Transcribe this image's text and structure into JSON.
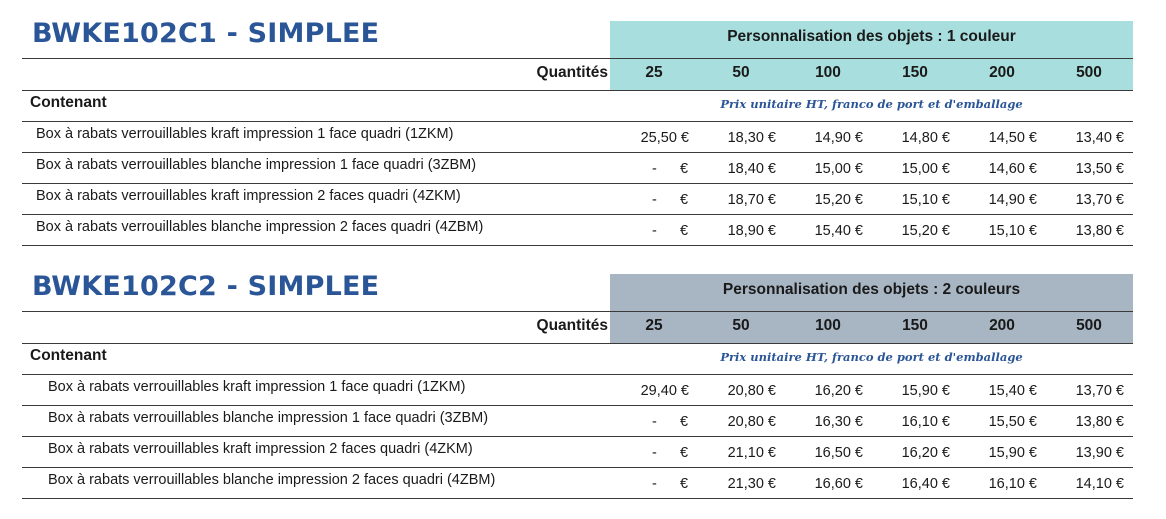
{
  "blocks": [
    {
      "title": "BWKE102C1 - SIMPLEE",
      "personalisation": "Personnalisation des objets : 1 couleur",
      "quantities_label": "Quantités",
      "quantities": [
        "25",
        "50",
        "100",
        "150",
        "200",
        "500"
      ],
      "contenant_label": "Contenant",
      "price_note": "Prix unitaire HT, franco de port et d'emballage",
      "band_color": "#a8dedd",
      "rows": [
        {
          "label": "Box à rabats verrouillables kraft impression 1 face quadri (1ZKM)",
          "first": "25,50 €",
          "prices": [
            "18,30 €",
            "14,90 €",
            "14,80 €",
            "14,50 €",
            "13,40 €"
          ]
        },
        {
          "label": "Box à rabats verrouillables blanche impression 1 face quadri (3ZBM)",
          "first_dash": "-",
          "first_euro": "€",
          "prices": [
            "18,40 €",
            "15,00 €",
            "15,00 €",
            "14,60 €",
            "13,50 €"
          ]
        },
        {
          "label": "Box à rabats verrouillables kraft impression 2 faces quadri (4ZKM)",
          "first_dash": "-",
          "first_euro": "€",
          "prices": [
            "18,70 €",
            "15,20 €",
            "15,10 €",
            "14,90 €",
            "13,70 €"
          ]
        },
        {
          "label": "Box à rabats verrouillables blanche impression 2 faces quadri (4ZBM)",
          "first_dash": "-",
          "first_euro": "€",
          "prices": [
            "18,90 €",
            "15,40 €",
            "15,20 €",
            "15,10 €",
            "13,80 €"
          ]
        }
      ]
    },
    {
      "title": "BWKE102C2 - SIMPLEE",
      "personalisation": "Personnalisation des objets : 2 couleurs",
      "quantities_label": "Quantités",
      "quantities": [
        "25",
        "50",
        "100",
        "150",
        "200",
        "500"
      ],
      "contenant_label": "Contenant",
      "price_note": "Prix unitaire HT, franco de port et d'emballage",
      "band_color": "#a8b5c3",
      "rows": [
        {
          "label": "Box à rabats verrouillables kraft impression 1 face quadri (1ZKM)",
          "first": "29,40 €",
          "prices": [
            "20,80 €",
            "16,20 €",
            "15,90 €",
            "15,40 €",
            "13,70 €"
          ]
        },
        {
          "label": "Box à rabats verrouillables blanche impression 1 face quadri (3ZBM)",
          "first_dash": "-",
          "first_euro": "€",
          "prices": [
            "20,80 €",
            "16,30 €",
            "16,10 €",
            "15,50 €",
            "13,80 €"
          ]
        },
        {
          "label": "Box à rabats verrouillables kraft impression 2 faces quadri (4ZKM)",
          "first_dash": "-",
          "first_euro": "€",
          "prices": [
            "21,10 €",
            "16,50 €",
            "16,20 €",
            "15,90 €",
            "13,90 €"
          ]
        },
        {
          "label": "Box à rabats verrouillables blanche impression 2 faces quadri (4ZBM)",
          "first_dash": "-",
          "first_euro": "€",
          "prices": [
            "21,30 €",
            "16,60 €",
            "16,40 €",
            "16,10 €",
            "14,10 €"
          ]
        }
      ]
    }
  ]
}
